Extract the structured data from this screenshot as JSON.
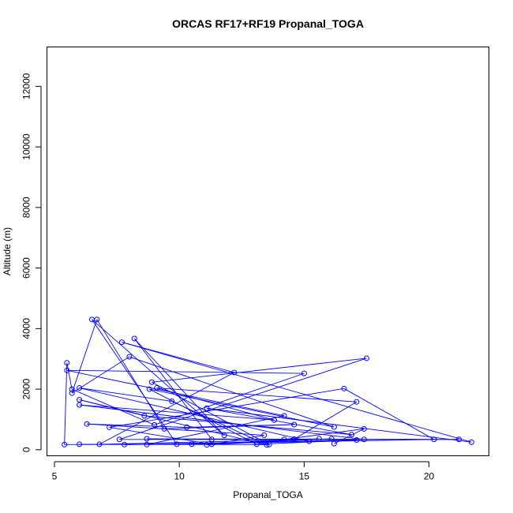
{
  "chart_data": {
    "type": "scatter",
    "title": "ORCAS RF17+RF19 Propanal_TOGA",
    "xlabel": "Propanal_TOGA",
    "ylabel": "Altitude (m)",
    "xlim": [
      4.7,
      22.4
    ],
    "ylim": [
      -200,
      13300
    ],
    "x_ticks": [
      5,
      10,
      15,
      20
    ],
    "y_ticks": [
      0,
      2000,
      4000,
      6000,
      8000,
      10000,
      12000
    ],
    "x_tick_labels": [
      "5",
      "10",
      "15",
      "20"
    ],
    "y_tick_labels": [
      "0",
      "2000",
      "4000",
      "6000",
      "8000",
      "10000",
      "12000"
    ],
    "grid": false,
    "legend": "none",
    "connected": true,
    "colors": {
      "series": "#0000ff",
      "frame": "#000000"
    },
    "series": [
      {
        "points": [
          [
            5.4,
            170
          ],
          [
            5.5,
            2620
          ],
          [
            5.5,
            2870
          ],
          [
            5.7,
            2000
          ],
          [
            5.7,
            1870
          ],
          [
            6.0,
            1650
          ],
          [
            6.0,
            1480
          ],
          [
            6.0,
            2040
          ],
          [
            6.0,
            180
          ],
          [
            6.3,
            850
          ],
          [
            6.5,
            4300
          ],
          [
            6.7,
            4300
          ],
          [
            6.8,
            180
          ],
          [
            7.2,
            740
          ],
          [
            7.6,
            340
          ],
          [
            7.7,
            3550
          ],
          [
            7.8,
            170
          ],
          [
            8.0,
            3070
          ],
          [
            8.2,
            3670
          ],
          [
            8.6,
            1120
          ],
          [
            8.7,
            360
          ],
          [
            8.7,
            170
          ],
          [
            8.8,
            2000
          ],
          [
            8.9,
            2230
          ],
          [
            9.0,
            820
          ],
          [
            9.1,
            2040
          ],
          [
            9.4,
            690
          ],
          [
            9.7,
            1600
          ],
          [
            9.9,
            180
          ],
          [
            10.3,
            740
          ],
          [
            10.5,
            180
          ],
          [
            11.1,
            160
          ],
          [
            11.1,
            1370
          ],
          [
            11.3,
            340
          ],
          [
            11.3,
            180
          ],
          [
            11.8,
            470
          ],
          [
            12.2,
            2550
          ],
          [
            13.1,
            180
          ],
          [
            13.4,
            480
          ],
          [
            13.5,
            160
          ],
          [
            13.6,
            170
          ],
          [
            13.8,
            980
          ],
          [
            14.2,
            1120
          ],
          [
            14.2,
            340
          ],
          [
            14.6,
            350
          ],
          [
            14.6,
            830
          ],
          [
            15.0,
            2520
          ],
          [
            15.2,
            280
          ],
          [
            15.6,
            360
          ],
          [
            16.1,
            360
          ],
          [
            16.2,
            750
          ],
          [
            16.2,
            200
          ],
          [
            16.6,
            2020
          ],
          [
            16.9,
            500
          ],
          [
            17.1,
            1580
          ],
          [
            17.1,
            320
          ],
          [
            17.4,
            340
          ],
          [
            17.4,
            690
          ],
          [
            17.5,
            3020
          ],
          [
            20.2,
            340
          ],
          [
            21.2,
            340
          ],
          [
            21.7,
            250
          ]
        ],
        "path_order": [
          8,
          40,
          23,
          58,
          14,
          60,
          20,
          33,
          18,
          35,
          10,
          28,
          16,
          55,
          37,
          22,
          50,
          17,
          4,
          11,
          26,
          45,
          29,
          9,
          38,
          34,
          13,
          52,
          59,
          21,
          42,
          1,
          46,
          24,
          3,
          2,
          0,
          30,
          49,
          12,
          36,
          15,
          61,
          32,
          53,
          19,
          5,
          39,
          27,
          7,
          47,
          56,
          6,
          41,
          25,
          54,
          44,
          31,
          48,
          43,
          57,
          51
        ]
      }
    ]
  }
}
